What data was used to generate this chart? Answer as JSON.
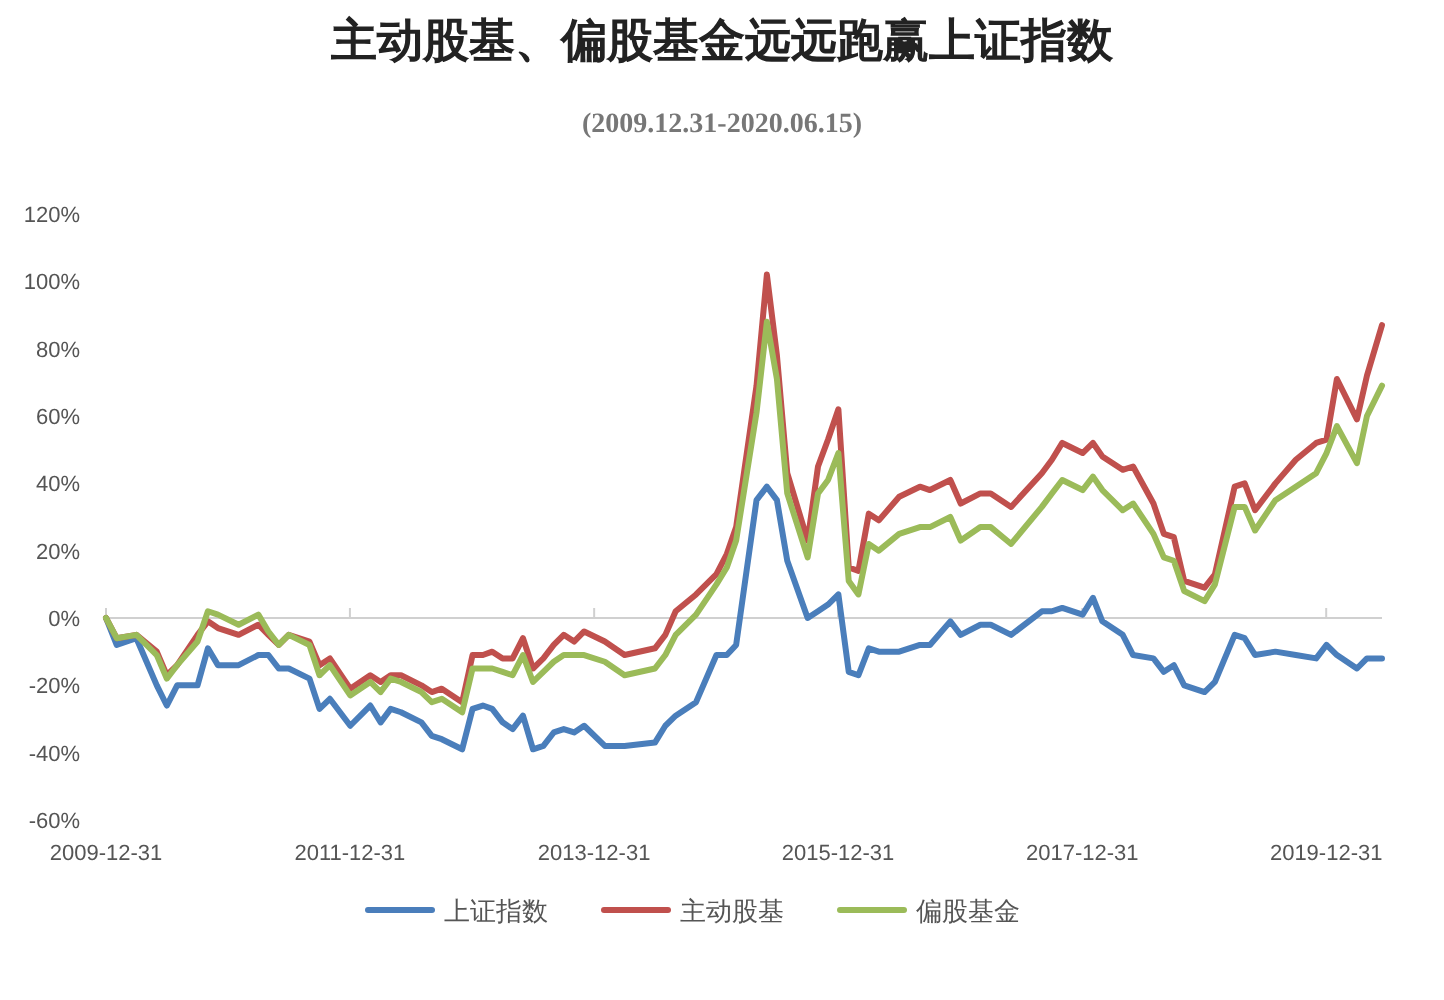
{
  "chart_data": {
    "type": "line",
    "title": "主动股基、偏股基金远远跑赢上证指数",
    "subtitle": "(2009.12.31-2020.06.15)",
    "x": [
      "2009-12-31",
      "2010-02",
      "2010-04",
      "2010-06",
      "2010-07",
      "2010-08",
      "2010-10",
      "2010-11",
      "2010-12",
      "2011-02",
      "2011-04",
      "2011-05",
      "2011-06",
      "2011-07",
      "2011-09",
      "2011-10",
      "2011-11",
      "2012-01",
      "2012-03",
      "2012-04",
      "2012-05",
      "2012-06",
      "2012-08",
      "2012-09",
      "2012-10",
      "2012-12",
      "2013-01",
      "2013-02",
      "2013-03",
      "2013-04",
      "2013-05",
      "2013-06",
      "2013-07",
      "2013-08",
      "2013-09",
      "2013-10",
      "2013-11",
      "2013-12",
      "2014-02",
      "2014-04",
      "2014-07",
      "2014-08",
      "2014-09",
      "2014-11",
      "2015-01",
      "2015-02",
      "2015-03",
      "2015-05",
      "2015-06",
      "2015-07",
      "2015-08",
      "2015-10",
      "2015-11",
      "2015-12",
      "2016-01",
      "2016-02",
      "2016-03",
      "2016-04",
      "2016-05",
      "2016-07",
      "2016-09",
      "2016-10",
      "2016-12",
      "2017-01",
      "2017-03",
      "2017-04",
      "2017-06",
      "2017-09",
      "2017-10",
      "2017-11",
      "2018-01",
      "2018-02",
      "2018-03",
      "2018-05",
      "2018-06",
      "2018-08",
      "2018-09",
      "2018-10",
      "2018-11",
      "2019-01",
      "2019-02",
      "2019-04",
      "2019-05",
      "2019-06",
      "2019-08",
      "2019-10",
      "2019-12",
      "2020-01",
      "2020-02",
      "2020-04",
      "2020-05",
      "2020-06-15"
    ],
    "series": [
      {
        "name": "上证指数",
        "color": "#4a7ebb",
        "values": [
          0,
          -8,
          -6,
          -20,
          -26,
          -20,
          -20,
          -9,
          -14,
          -14,
          -11,
          -11,
          -15,
          -15,
          -18,
          -27,
          -24,
          -32,
          -26,
          -31,
          -27,
          -28,
          -31,
          -35,
          -36,
          -39,
          -27,
          -26,
          -27,
          -31,
          -33,
          -29,
          -39,
          -38,
          -34,
          -33,
          -34,
          -32,
          -38,
          -38,
          -37,
          -32,
          -29,
          -25,
          -11,
          -11,
          -8,
          35,
          39,
          35,
          17,
          0,
          2,
          4,
          7,
          -16,
          -17,
          -9,
          -10,
          -10,
          -8,
          -8,
          -1,
          -5,
          -2,
          -2,
          -5,
          2,
          2,
          3,
          1,
          6,
          -1,
          -5,
          -11,
          -12,
          -16,
          -14,
          -20,
          -22,
          -19,
          -5,
          -6,
          -11,
          -10,
          -11,
          -12,
          -8,
          -11,
          -15,
          -12,
          -12
        ]
      },
      {
        "name": "主动股基",
        "color": "#c0504d",
        "values": [
          0,
          -6,
          -5,
          -10,
          -17,
          -14,
          -5,
          -1,
          -3,
          -5,
          -2,
          -5,
          -8,
          -5,
          -7,
          -14,
          -12,
          -21,
          -17,
          -19,
          -17,
          -17,
          -20,
          -22,
          -21,
          -25,
          -11,
          -11,
          -10,
          -12,
          -12,
          -6,
          -15,
          -12,
          -8,
          -5,
          -7,
          -4,
          -7,
          -11,
          -9,
          -5,
          2,
          7,
          13,
          19,
          27,
          69,
          102,
          78,
          43,
          23,
          45,
          53,
          62,
          15,
          14,
          31,
          29,
          36,
          39,
          38,
          41,
          34,
          37,
          37,
          33,
          43,
          47,
          52,
          49,
          52,
          48,
          44,
          45,
          34,
          25,
          24,
          11,
          9,
          13,
          39,
          40,
          32,
          40,
          47,
          52,
          53,
          71,
          59,
          72,
          87
        ]
      },
      {
        "name": "偏股基金",
        "color": "#9bbb59",
        "values": [
          0,
          -6,
          -5,
          -11,
          -18,
          -14,
          -7,
          2,
          1,
          -2,
          1,
          -4,
          -8,
          -5,
          -8,
          -17,
          -14,
          -23,
          -19,
          -22,
          -18,
          -19,
          -22,
          -25,
          -24,
          -28,
          -15,
          -15,
          -15,
          -16,
          -17,
          -11,
          -19,
          -16,
          -13,
          -11,
          -11,
          -11,
          -13,
          -17,
          -15,
          -11,
          -5,
          1,
          10,
          15,
          23,
          61,
          88,
          71,
          37,
          18,
          37,
          41,
          49,
          11,
          7,
          22,
          20,
          25,
          27,
          27,
          30,
          23,
          27,
          27,
          22,
          33,
          37,
          41,
          38,
          42,
          38,
          32,
          34,
          25,
          18,
          17,
          8,
          5,
          10,
          33,
          33,
          26,
          35,
          39,
          43,
          49,
          57,
          46,
          60,
          69
        ]
      }
    ],
    "xlim": [
      "2009-12-31",
      "2020-06-15"
    ],
    "xticks": [
      "2009-12-31",
      "2011-12-31",
      "2013-12-31",
      "2015-12-31",
      "2017-12-31",
      "2019-12-31"
    ],
    "ylim": [
      -60,
      120
    ],
    "yticks": [
      {
        "value": -60,
        "label": "-60%"
      },
      {
        "value": -40,
        "label": "-40%"
      },
      {
        "value": -20,
        "label": "-20%"
      },
      {
        "value": 0,
        "label": "0%"
      },
      {
        "value": 20,
        "label": "20%"
      },
      {
        "value": 40,
        "label": "40%"
      },
      {
        "value": 60,
        "label": "60%"
      },
      {
        "value": 80,
        "label": "80%"
      },
      {
        "value": 100,
        "label": "100%"
      },
      {
        "value": 120,
        "label": "120%"
      }
    ],
    "legend": "bottom",
    "line_style": "solid",
    "marker": "none"
  }
}
